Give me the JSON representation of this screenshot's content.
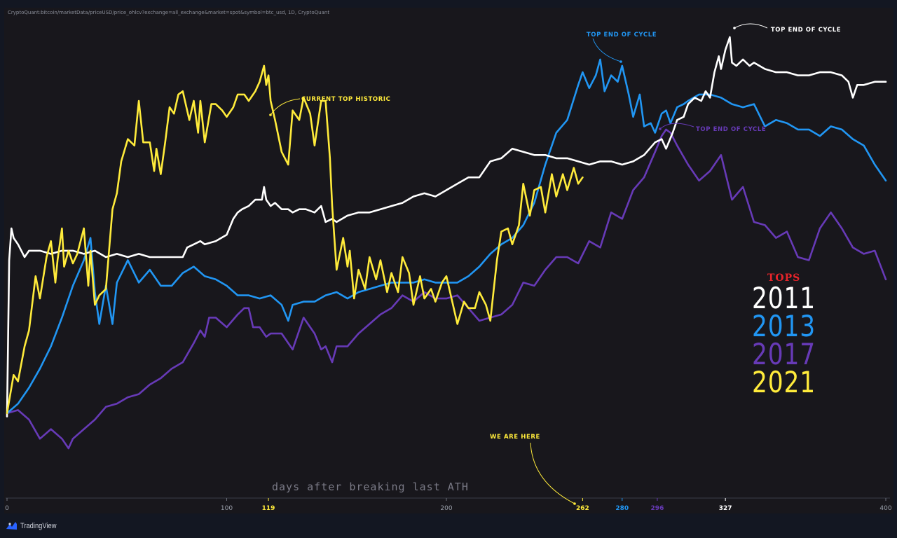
{
  "source_label": "CryptoQuant:bitcoin/marketData/priceUSD/price_ohlcv?exchange=all_exchange&market=spot&symbol=btc_usd, 1D, CryptoQuant",
  "brand": "TradingView",
  "colors": {
    "2011": "#ffffff",
    "2013": "#2196f3",
    "2017": "#673ab7",
    "2021": "#ffeb3b",
    "tops_title": "#e8242a"
  },
  "chart_data": {
    "type": "line",
    "xlabel": "days after breaking last ATH",
    "xlim": [
      0,
      400
    ],
    "x_ticks": [
      0,
      100,
      200,
      400
    ],
    "highlight_ticks": [
      {
        "value": 119,
        "label": "119",
        "series": "2021"
      },
      {
        "value": 262,
        "label": "262",
        "series": "2021"
      },
      {
        "value": 280,
        "label": "280",
        "series": "2013"
      },
      {
        "value": 296,
        "label": "296",
        "series": "2017"
      },
      {
        "value": 327,
        "label": "327",
        "series": "2011"
      }
    ],
    "legend": {
      "title": "TOPS",
      "placement": "right",
      "entries": [
        "2011",
        "2013",
        "2017",
        "2021"
      ]
    },
    "annotations": [
      {
        "text": "CURRENT TOP HISTORIC",
        "series": "2021",
        "x": 119
      },
      {
        "text": "TOP END OF CYCLE",
        "series": "2013",
        "x": 280
      },
      {
        "text": "TOP END OF CYCLE",
        "series": "2011",
        "x": 327
      },
      {
        "text": "TOP END OF CYCLE",
        "series": "2017",
        "x": 296
      },
      {
        "text": "WE ARE HERE",
        "series": "2021",
        "x": 262
      }
    ],
    "series": [
      {
        "name": "2011",
        "x": [
          0,
          1,
          2,
          3,
          5,
          8,
          10,
          15,
          20,
          25,
          30,
          35,
          40,
          45,
          50,
          55,
          60,
          65,
          70,
          75,
          80,
          82,
          85,
          88,
          90,
          95,
          100,
          103,
          105,
          107,
          110,
          113,
          116,
          117,
          118,
          120,
          122,
          125,
          128,
          130,
          133,
          136,
          140,
          143,
          145,
          148,
          150,
          155,
          160,
          165,
          170,
          175,
          180,
          185,
          190,
          195,
          200,
          205,
          210,
          215,
          220,
          225,
          230,
          235,
          240,
          245,
          250,
          255,
          260,
          265,
          270,
          275,
          280,
          285,
          290,
          295,
          298,
          300,
          303,
          305,
          308,
          310,
          313,
          316,
          318,
          320,
          322,
          324,
          325,
          327,
          329,
          330,
          332,
          335,
          338,
          340,
          345,
          350,
          355,
          360,
          365,
          370,
          375,
          380,
          383,
          385,
          387,
          390,
          395,
          400
        ],
        "y": [
          0.1,
          5,
          6,
          5.7,
          5.5,
          5.1,
          5.3,
          5.3,
          5.2,
          5.3,
          5.3,
          5.2,
          5.3,
          5.1,
          5.2,
          5.1,
          5.2,
          5.1,
          5.1,
          5.1,
          5.1,
          5.4,
          5.5,
          5.6,
          5.5,
          5.6,
          5.8,
          6.3,
          6.5,
          6.6,
          6.7,
          6.9,
          6.9,
          7.3,
          6.9,
          6.7,
          6.8,
          6.6,
          6.6,
          6.5,
          6.6,
          6.6,
          6.5,
          6.7,
          6.2,
          6.3,
          6.2,
          6.4,
          6.5,
          6.5,
          6.6,
          6.7,
          6.8,
          7.0,
          7.1,
          7.0,
          7.2,
          7.4,
          7.6,
          7.6,
          8.1,
          8.2,
          8.5,
          8.4,
          8.3,
          8.3,
          8.2,
          8.2,
          8.1,
          8.0,
          8.1,
          8.1,
          8.0,
          8.1,
          8.3,
          8.7,
          8.8,
          8.5,
          9.0,
          9.4,
          9.5,
          9.9,
          10.1,
          10.0,
          10.3,
          10.1,
          10.9,
          11.4,
          11.0,
          11.6,
          12.0,
          11.2,
          11.1,
          11.3,
          11.1,
          11.2,
          11.0,
          10.9,
          10.9,
          10.8,
          10.8,
          10.9,
          10.9,
          10.8,
          10.6,
          10.1,
          10.5,
          10.5,
          10.6,
          10.6
        ]
      },
      {
        "name": "2013",
        "x": [
          0,
          5,
          10,
          15,
          20,
          25,
          30,
          35,
          38,
          40,
          42,
          45,
          48,
          50,
          55,
          60,
          65,
          70,
          75,
          80,
          85,
          90,
          95,
          100,
          105,
          110,
          115,
          120,
          125,
          128,
          130,
          135,
          140,
          145,
          150,
          155,
          160,
          165,
          170,
          175,
          180,
          185,
          190,
          195,
          200,
          205,
          210,
          215,
          220,
          225,
          230,
          235,
          240,
          245,
          250,
          255,
          260,
          262,
          265,
          268,
          270,
          272,
          275,
          278,
          280,
          283,
          285,
          288,
          290,
          293,
          295,
          298,
          300,
          302,
          305,
          308,
          310,
          315,
          320,
          325,
          330,
          335,
          340,
          345,
          350,
          355,
          360,
          365,
          370,
          375,
          380,
          385,
          390,
          395,
          400
        ],
        "y": [
          0.2,
          0.5,
          1.0,
          1.6,
          2.3,
          3.2,
          4.2,
          5.0,
          5.7,
          4.0,
          3.0,
          4.2,
          3.0,
          4.3,
          5.0,
          4.3,
          4.7,
          4.2,
          4.2,
          4.6,
          4.8,
          4.5,
          4.4,
          4.2,
          3.9,
          3.9,
          3.8,
          3.9,
          3.6,
          3.1,
          3.6,
          3.7,
          3.7,
          3.9,
          4.0,
          3.8,
          4.0,
          4.1,
          4.2,
          4.3,
          4.3,
          4.3,
          4.4,
          4.3,
          4.3,
          4.3,
          4.5,
          4.8,
          5.2,
          5.5,
          5.7,
          6.1,
          6.8,
          8.0,
          9.0,
          9.4,
          10.5,
          10.9,
          10.4,
          10.8,
          11.3,
          10.3,
          10.8,
          10.6,
          11.1,
          10.2,
          9.5,
          10.2,
          9.2,
          9.3,
          9.0,
          9.6,
          9.7,
          9.3,
          9.8,
          9.9,
          10.0,
          10.2,
          10.2,
          10.1,
          9.9,
          9.8,
          9.9,
          9.2,
          9.4,
          9.3,
          9.1,
          9.1,
          8.9,
          9.2,
          9.1,
          8.8,
          8.6,
          8.0,
          7.5
        ]
      },
      {
        "name": "2017",
        "x": [
          0,
          5,
          10,
          15,
          20,
          25,
          28,
          30,
          35,
          40,
          45,
          50,
          55,
          60,
          65,
          70,
          75,
          80,
          85,
          88,
          90,
          92,
          95,
          100,
          105,
          108,
          110,
          112,
          115,
          118,
          120,
          125,
          130,
          135,
          140,
          143,
          145,
          148,
          150,
          155,
          160,
          165,
          170,
          175,
          180,
          185,
          190,
          195,
          200,
          205,
          210,
          215,
          220,
          225,
          230,
          235,
          240,
          245,
          250,
          255,
          260,
          265,
          270,
          275,
          280,
          285,
          290,
          295,
          298,
          300,
          302,
          305,
          310,
          315,
          320,
          325,
          330,
          335,
          340,
          345,
          350,
          355,
          360,
          365,
          370,
          375,
          380,
          385,
          390,
          395,
          400
        ],
        "y": [
          0.2,
          0.3,
          0,
          -0.6,
          -0.3,
          -0.6,
          -0.9,
          -0.6,
          -0.3,
          0,
          0.4,
          0.5,
          0.7,
          0.8,
          1.1,
          1.3,
          1.6,
          1.8,
          2.4,
          2.8,
          2.6,
          3.2,
          3.2,
          2.9,
          3.3,
          3.5,
          3.5,
          2.9,
          2.9,
          2.6,
          2.7,
          2.7,
          2.2,
          3.2,
          2.7,
          2.2,
          2.3,
          1.8,
          2.3,
          2.3,
          2.7,
          3.0,
          3.3,
          3.5,
          3.9,
          3.7,
          4.0,
          3.8,
          3.8,
          3.9,
          3.5,
          3.1,
          3.2,
          3.3,
          3.6,
          4.3,
          4.2,
          4.7,
          5.1,
          5.1,
          4.9,
          5.6,
          5.4,
          6.5,
          6.3,
          7.2,
          7.6,
          8.4,
          8.9,
          9.1,
          9.0,
          8.6,
          8.0,
          7.5,
          7.8,
          8.3,
          6.9,
          7.3,
          6.2,
          6.1,
          5.7,
          5.9,
          5.1,
          5.0,
          6.0,
          6.5,
          6.0,
          5.4,
          5.2,
          5.3,
          4.4
        ]
      },
      {
        "name": "2021",
        "x": [
          0,
          3,
          5,
          8,
          10,
          13,
          15,
          18,
          20,
          22,
          23,
          25,
          26,
          28,
          30,
          32,
          35,
          37,
          38,
          40,
          42,
          45,
          48,
          50,
          52,
          55,
          58,
          60,
          62,
          65,
          67,
          68,
          70,
          72,
          74,
          76,
          78,
          80,
          83,
          85,
          87,
          88,
          90,
          93,
          95,
          98,
          100,
          103,
          105,
          108,
          110,
          113,
          115,
          117,
          118,
          119,
          120,
          122,
          125,
          128,
          130,
          133,
          135,
          138,
          140,
          143,
          145,
          147,
          148,
          150,
          153,
          155,
          156,
          158,
          160,
          163,
          165,
          168,
          170,
          173,
          175,
          178,
          180,
          183,
          185,
          188,
          190,
          193,
          195,
          198,
          200,
          203,
          205,
          208,
          210,
          213,
          215,
          218,
          220,
          223,
          225,
          228,
          230,
          233,
          235,
          238,
          240,
          243,
          245,
          248,
          250,
          253,
          255,
          258,
          260,
          262
        ],
        "y": [
          0.2,
          1.4,
          1.2,
          2.3,
          2.8,
          4.5,
          3.8,
          5.1,
          5.6,
          4.3,
          5.0,
          6.0,
          4.8,
          5.3,
          4.9,
          5.2,
          6.0,
          4.2,
          5.3,
          3.6,
          3.9,
          4.1,
          6.6,
          7.1,
          8.1,
          8.8,
          8.6,
          10.0,
          8.7,
          8.7,
          7.8,
          8.5,
          7.7,
          8.7,
          9.8,
          9.6,
          10.2,
          10.3,
          9.4,
          10.0,
          9.0,
          10.0,
          8.7,
          9.9,
          9.9,
          9.7,
          9.5,
          9.8,
          10.2,
          10.2,
          10.0,
          10.3,
          10.6,
          11.1,
          10.5,
          10.8,
          10.0,
          9.4,
          8.4,
          8.0,
          9.7,
          9.4,
          10.1,
          9.6,
          8.6,
          10.0,
          10.0,
          8.2,
          6.7,
          4.7,
          5.7,
          4.8,
          5.3,
          3.8,
          4.7,
          4.1,
          5.1,
          4.4,
          5.0,
          4.0,
          4.6,
          4.0,
          5.1,
          4.6,
          3.6,
          4.5,
          3.8,
          4.1,
          3.7,
          4.3,
          4.5,
          3.6,
          3.0,
          3.7,
          3.5,
          3.5,
          4.0,
          3.6,
          3.1,
          5.0,
          5.9,
          6.0,
          5.5,
          6.1,
          7.4,
          6.4,
          7.2,
          7.3,
          6.5,
          7.7,
          7.0,
          7.7,
          7.2,
          7.9,
          7.4,
          7.6
        ]
      }
    ]
  }
}
